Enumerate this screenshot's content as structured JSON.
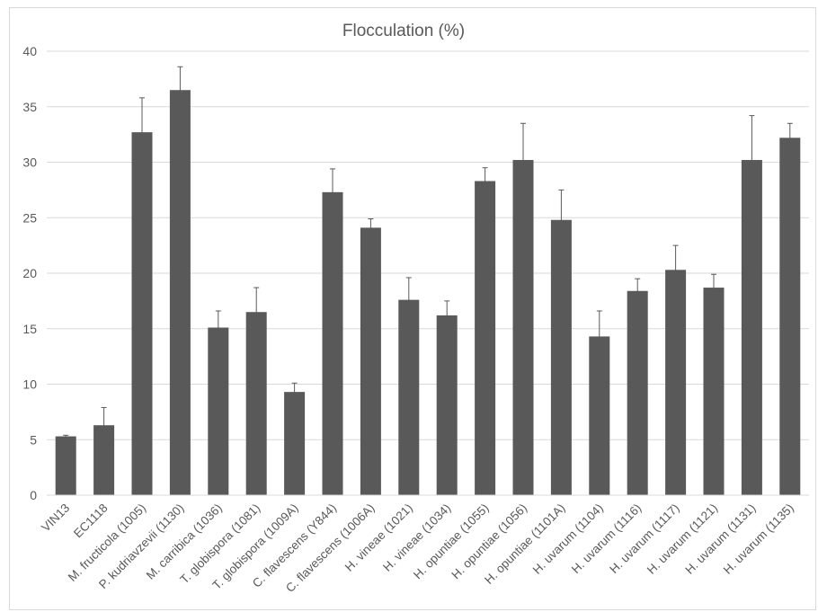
{
  "chart_data": {
    "type": "bar",
    "title": "Flocculation (%)",
    "xlabel": "",
    "ylabel": "",
    "ylim": [
      0,
      40
    ],
    "yticks": [
      0,
      5,
      10,
      15,
      20,
      25,
      30,
      35,
      40
    ],
    "grid": true,
    "legend": "none",
    "error_bars": true,
    "categories": [
      "VIN13",
      "EC1118",
      "M. fructicola (1005)",
      "P. kudriavzevii (1130)",
      "M. carribica (1036)",
      "T. globispora (1081)",
      "T. globispora (1009A)",
      "C. flavescens (Y844)",
      "C. flavescens (1006A)",
      "H. vineae (1021)",
      "H. vineae (1034)",
      "H. opuntiae (1055)",
      "H. opuntiae (1056)",
      "H. opuntiae (1101A)",
      "H. uvarum (1104)",
      "H. uvarum (1116)",
      "H. uvarum (1117)",
      "H. uvarum (1121)",
      "H. uvarum (1131)",
      "H. uvarum (1135)"
    ],
    "values": [
      5.3,
      6.3,
      32.7,
      36.5,
      15.1,
      16.5,
      9.3,
      27.3,
      24.1,
      17.6,
      16.2,
      28.3,
      30.2,
      24.8,
      14.3,
      18.4,
      20.3,
      18.7,
      30.2,
      32.2
    ],
    "errors": [
      0.1,
      1.6,
      3.1,
      2.1,
      1.5,
      2.2,
      0.8,
      2.1,
      0.8,
      2.0,
      1.3,
      1.2,
      3.3,
      2.7,
      2.3,
      1.1,
      2.2,
      1.2,
      4.0,
      1.3
    ],
    "colors": {
      "bar": "#595959",
      "grid": "#d9d9d9",
      "text": "#595959",
      "errorbar": "#595959"
    }
  }
}
